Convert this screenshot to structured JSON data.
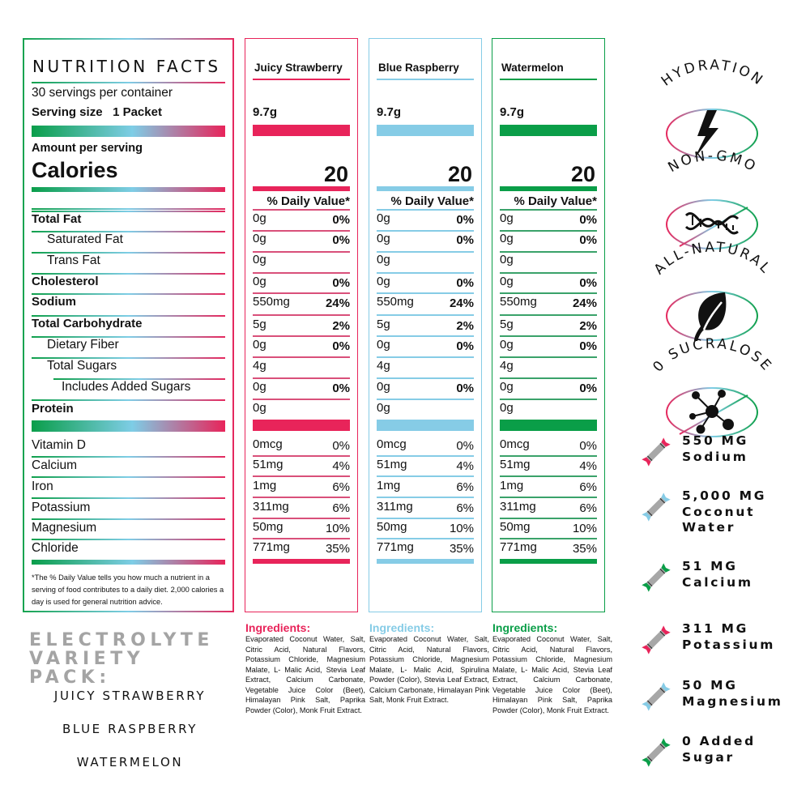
{
  "nutrition_panel": {
    "title": "NUTRITION FACTS",
    "servings": "30 servings per container",
    "serving_size_label": "Serving size",
    "serving_size_value": "1 Packet",
    "amount_per_serving": "Amount per serving",
    "calories_label": "Calories",
    "nutrients": [
      {
        "label": "Total Fat",
        "bold": true,
        "indent": 0
      },
      {
        "label": "Saturated Fat",
        "bold": false,
        "indent": 1
      },
      {
        "label": "Trans Fat",
        "bold": false,
        "indent": 1
      },
      {
        "label": "Cholesterol",
        "bold": true,
        "indent": 0
      },
      {
        "label": "Sodium",
        "bold": true,
        "indent": 0
      },
      {
        "label": "Total Carbohydrate",
        "bold": true,
        "indent": 0
      },
      {
        "label": "Dietary Fiber",
        "bold": false,
        "indent": 1
      },
      {
        "label": "Total Sugars",
        "bold": false,
        "indent": 1
      },
      {
        "label": "Includes Added Sugars",
        "bold": false,
        "indent": 2
      },
      {
        "label": "Protein",
        "bold": true,
        "indent": 0
      }
    ],
    "vitamins": [
      "Vitamin D",
      "Calcium",
      "Iron",
      "Potassium",
      "Magnesium",
      "Chloride"
    ],
    "footnote": "*The % Daily Value tells you how much a nutrient in a serving of food contributes to a daily diet. 2,000 calories a day is used for general nutrition advice."
  },
  "flavors": [
    {
      "name": "Juicy Strawberry",
      "color": "#e8245a",
      "line_color": "#d9507a",
      "serving": "9.7g",
      "calories": "20",
      "dv_label": "% Daily Value*",
      "nutrients": [
        {
          "amount": "0g",
          "pct": "0%"
        },
        {
          "amount": "0g",
          "pct": "0%"
        },
        {
          "amount": "0g",
          "pct": ""
        },
        {
          "amount": "0g",
          "pct": "0%"
        },
        {
          "amount": "550mg",
          "pct": "24%"
        },
        {
          "amount": "5g",
          "pct": "2%"
        },
        {
          "amount": "0g",
          "pct": "0%"
        },
        {
          "amount": "4g",
          "pct": ""
        },
        {
          "amount": "0g",
          "pct": "0%"
        },
        {
          "amount": "0g",
          "pct": ""
        }
      ],
      "vitamins": [
        {
          "amount": "0mcg",
          "pct": "0%"
        },
        {
          "amount": "51mg",
          "pct": "4%"
        },
        {
          "amount": "1mg",
          "pct": "6%"
        },
        {
          "amount": "311mg",
          "pct": "6%"
        },
        {
          "amount": "50mg",
          "pct": "10%"
        },
        {
          "amount": "771mg",
          "pct": "35%"
        }
      ],
      "ingredients_label": "Ingredients:",
      "ingredients": "Evaporated Coconut Water, Salt, Citric Acid, Natural Flavors, Potassium Chloride, Magnesium Malate, L- Malic Acid, Stevia Leaf Extract, Calcium Carbonate, Vegetable Juice Color (Beet), Himalayan Pink Salt, Paprika Powder (Color), Monk Fruit Extract."
    },
    {
      "name": "Blue Raspberry",
      "color": "#86cce6",
      "line_color": "#86cce6",
      "serving": "9.7g",
      "calories": "20",
      "dv_label": "% Daily Value*",
      "nutrients": [
        {
          "amount": "0g",
          "pct": "0%"
        },
        {
          "amount": "0g",
          "pct": "0%"
        },
        {
          "amount": "0g",
          "pct": ""
        },
        {
          "amount": "0g",
          "pct": "0%"
        },
        {
          "amount": "550mg",
          "pct": "24%"
        },
        {
          "amount": "5g",
          "pct": "2%"
        },
        {
          "amount": "0g",
          "pct": "0%"
        },
        {
          "amount": "4g",
          "pct": ""
        },
        {
          "amount": "0g",
          "pct": "0%"
        },
        {
          "amount": "0g",
          "pct": ""
        }
      ],
      "vitamins": [
        {
          "amount": "0mcg",
          "pct": "0%"
        },
        {
          "amount": "51mg",
          "pct": "4%"
        },
        {
          "amount": "1mg",
          "pct": "6%"
        },
        {
          "amount": "311mg",
          "pct": "6%"
        },
        {
          "amount": "50mg",
          "pct": "10%"
        },
        {
          "amount": "771mg",
          "pct": "35%"
        }
      ],
      "ingredients_label": "Ingredients:",
      "ingredients": "Evaporated Coconut Water, Salt, Citric Acid, Natural Flavors, Potassium Chloride, Magnesium Malate, L- Malic Acid, Spirulina Powder (Color), Stevia Leaf Extract, Calcium Carbonate, Himalayan Pink Salt, Monk Fruit Extract."
    },
    {
      "name": "Watermelon",
      "color": "#0a9e48",
      "line_color": "#3aa26a",
      "serving": "9.7g",
      "calories": "20",
      "dv_label": "% Daily Value*",
      "nutrients": [
        {
          "amount": "0g",
          "pct": "0%"
        },
        {
          "amount": "0g",
          "pct": "0%"
        },
        {
          "amount": "0g",
          "pct": ""
        },
        {
          "amount": "0g",
          "pct": "0%"
        },
        {
          "amount": "550mg",
          "pct": "24%"
        },
        {
          "amount": "5g",
          "pct": "2%"
        },
        {
          "amount": "0g",
          "pct": "0%"
        },
        {
          "amount": "4g",
          "pct": ""
        },
        {
          "amount": "0g",
          "pct": "0%"
        },
        {
          "amount": "0g",
          "pct": ""
        }
      ],
      "vitamins": [
        {
          "amount": "0mcg",
          "pct": "0%"
        },
        {
          "amount": "51mg",
          "pct": "4%"
        },
        {
          "amount": "1mg",
          "pct": "6%"
        },
        {
          "amount": "311mg",
          "pct": "6%"
        },
        {
          "amount": "50mg",
          "pct": "10%"
        },
        {
          "amount": "771mg",
          "pct": "35%"
        }
      ],
      "ingredients_label": "Ingredients:",
      "ingredients": "Evaporated Coconut Water, Salt, Citric Acid, Natural Flavors, Potassium Chloride, Magnesium Malate, L- Malic Acid, Stevia Leaf Extract, Calcium Carbonate, Vegetable Juice Color (Beet), Himalayan Pink Salt, Paprika Powder (Color), Monk Fruit Extract."
    }
  ],
  "variety_pack": {
    "title_line1": "ELECTROLYTE",
    "title_line2": "VARIETY PACK:",
    "flavors": [
      "JUICY STRAWBERRY",
      "BLUE RASPBERRY",
      "WATERMELON"
    ]
  },
  "badges": [
    {
      "label": "HYDRATION",
      "icon": "lightning-bolt-icon",
      "crossed": false
    },
    {
      "label": "NON-GMO",
      "icon": "dna-icon",
      "crossed": true
    },
    {
      "label": "ALL-NATURAL",
      "icon": "leaf-icon",
      "crossed": false
    },
    {
      "label": "0 SUCRALOSE",
      "icon": "molecule-icon",
      "crossed": true
    }
  ],
  "stats": [
    {
      "text": "550 MG\nSodium",
      "stick_color": "#e8245a"
    },
    {
      "text": "5,000 MG\nCoconut\nWater",
      "stick_color": "#86cce6"
    },
    {
      "text": "51 MG\nCalcium",
      "stick_color": "#0a9e48"
    },
    {
      "text": "311 MG\nPotassium",
      "stick_color": "#e8245a"
    },
    {
      "text": "50 MG\nMagnesium",
      "stick_color": "#86cce6"
    },
    {
      "text": "0 Added\nSugar",
      "stick_color": "#0a9e48"
    }
  ],
  "colors": {
    "strawberry": "#e8245a",
    "blue_raspberry": "#86cce6",
    "watermelon": "#0a9e48",
    "pack_title_gray": "#a4a4a4"
  }
}
